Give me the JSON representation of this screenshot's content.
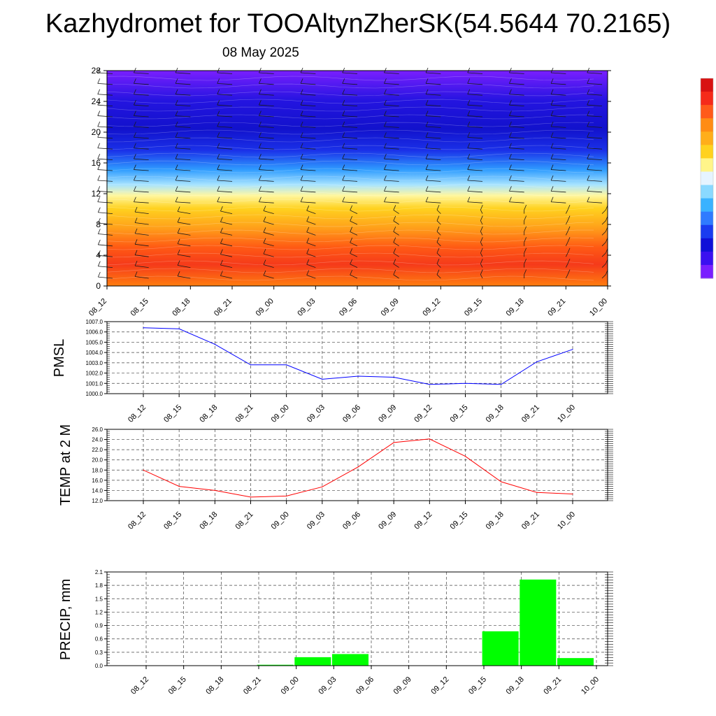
{
  "title": "Kazhydromet for TOOAltynZherSK(54.5644 70.2165)",
  "date": "08 May 2025",
  "chart_data": [
    {
      "type": "heatmap",
      "name": "vertical-cross-section",
      "x_ticks": [
        "08_12",
        "08_15",
        "08_18",
        "08_21",
        "09_00",
        "09_03",
        "09_06",
        "09_09",
        "09_12",
        "09_15",
        "09_18",
        "09_21",
        "10_00"
      ],
      "y_ticks": [
        0,
        4,
        8,
        12,
        16,
        20,
        24,
        28
      ],
      "ylim": [
        0,
        28
      ],
      "colorbar_colors": [
        "#7a1fff",
        "#3a10f0",
        "#1010d8",
        "#1a3cf0",
        "#2f7bff",
        "#3ab2ff",
        "#8ad9ff",
        "#e6f4ff",
        "#fff58a",
        "#ffd21f",
        "#ffae1a",
        "#ff8c14",
        "#ff5a1a",
        "#f52a1a",
        "#d81212"
      ],
      "has_wind_barbs": true
    },
    {
      "type": "line",
      "ylabel": "PMSL",
      "ylim": [
        1000.0,
        1007.0
      ],
      "y_ticks": [
        "1000.0",
        "1001.0",
        "1002.0",
        "1003.0",
        "1004.0",
        "1005.0",
        "1006.0",
        "1007.0"
      ],
      "categories": [
        "08_12",
        "08_15",
        "08_18",
        "08_21",
        "09_00",
        "09_03",
        "09_06",
        "09_09",
        "09_12",
        "09_15",
        "09_18",
        "09_21",
        "10_00"
      ],
      "values": [
        1006.4,
        1006.3,
        1004.8,
        1002.8,
        1002.8,
        1001.4,
        1001.7,
        1001.6,
        1000.9,
        1001.0,
        1000.9,
        1003.1,
        1004.3
      ],
      "color": "#0000ff",
      "grid": true
    },
    {
      "type": "line",
      "ylabel": "TEMP at 2 M",
      "ylim": [
        12.0,
        26.0
      ],
      "y_ticks": [
        "12.0",
        "14.0",
        "16.0",
        "18.0",
        "20.0",
        "22.0",
        "24.0",
        "26.0"
      ],
      "categories": [
        "08_12",
        "08_15",
        "08_18",
        "08_21",
        "09_00",
        "09_03",
        "09_06",
        "09_09",
        "09_12",
        "09_15",
        "09_18",
        "09_21",
        "10_00"
      ],
      "values": [
        18.0,
        14.8,
        14.0,
        12.7,
        12.9,
        14.7,
        18.6,
        23.4,
        24.1,
        20.7,
        15.7,
        13.6,
        13.3
      ],
      "color": "#ff0000",
      "grid": true
    },
    {
      "type": "bar",
      "ylabel": "PRECIP, mm",
      "ylim": [
        0.0,
        2.1
      ],
      "y_ticks": [
        "0.0",
        "0.3",
        "0.6",
        "0.9",
        "1.2",
        "1.5",
        "1.8",
        "2.1"
      ],
      "categories": [
        "08_12",
        "08_15",
        "08_18",
        "08_21",
        "09_00",
        "09_03",
        "09_06",
        "09_09",
        "09_12",
        "09_15",
        "09_18",
        "09_21",
        "10_00"
      ],
      "values": [
        0.0,
        0.0,
        0.0,
        0.0,
        0.02,
        0.19,
        0.26,
        0.0,
        0.0,
        0.0,
        0.77,
        1.93,
        0.17
      ],
      "color": "#00ff00",
      "grid": true
    }
  ]
}
